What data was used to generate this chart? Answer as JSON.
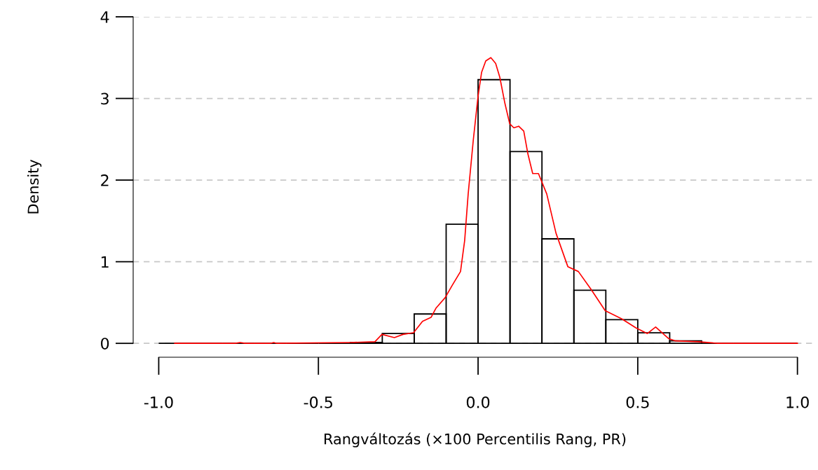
{
  "chart_data": {
    "type": "histogram",
    "xlabel": "Rangváltozás (×100 Percentilis Rang, PR)",
    "ylabel": "Density",
    "xlim": [
      -1.08,
      1.06
    ],
    "ylim": [
      -0.17,
      4
    ],
    "xticks": [
      {
        "value": -1.0,
        "label": "-1.0"
      },
      {
        "value": -0.5,
        "label": "-0.5"
      },
      {
        "value": 0.0,
        "label": "0.0"
      },
      {
        "value": 0.5,
        "label": "0.5"
      },
      {
        "value": 1.0,
        "label": "1.0"
      }
    ],
    "yticks": [
      0,
      1,
      2,
      3,
      4
    ],
    "grid": "y",
    "series": [
      {
        "bins": [
          -1.0,
          -0.9,
          -0.8,
          -0.7,
          -0.6,
          -0.5,
          -0.4,
          -0.3,
          -0.2,
          -0.1,
          0.0,
          0.1,
          0.2,
          0.3,
          0.4,
          0.5,
          0.6,
          0.7,
          0.8,
          0.9,
          1.0
        ],
        "values": [
          0,
          0,
          0,
          0,
          0,
          0,
          0.01,
          0.12,
          0.36,
          1.46,
          3.23,
          2.35,
          1.28,
          0.65,
          0.29,
          0.13,
          0.03,
          0,
          0,
          0
        ]
      },
      {
        "type": "line",
        "color": "#ff0000",
        "x": [
          -0.95,
          -0.76,
          -0.745,
          -0.73,
          -0.65,
          -0.64,
          -0.63,
          -0.4,
          -0.323,
          -0.301,
          -0.262,
          -0.235,
          -0.202,
          -0.174,
          -0.147,
          -0.132,
          -0.103,
          -0.081,
          -0.055,
          -0.042,
          -0.031,
          -0.015,
          0.0,
          0.011,
          0.024,
          0.04,
          0.055,
          0.068,
          0.084,
          0.099,
          0.112,
          0.127,
          0.143,
          0.156,
          0.171,
          0.189,
          0.215,
          0.244,
          0.281,
          0.314,
          0.354,
          0.398,
          0.45,
          0.494,
          0.53,
          0.556,
          0.596,
          0.618,
          0.69,
          0.75,
          1.0
        ],
        "values": [
          0,
          0,
          0.01,
          0,
          0,
          0.01,
          0,
          0.01,
          0.02,
          0.11,
          0.07,
          0.11,
          0.13,
          0.27,
          0.32,
          0.43,
          0.56,
          0.71,
          0.88,
          1.26,
          1.83,
          2.49,
          3.03,
          3.32,
          3.46,
          3.5,
          3.43,
          3.26,
          2.94,
          2.69,
          2.64,
          2.66,
          2.6,
          2.32,
          2.08,
          2.08,
          1.83,
          1.35,
          0.94,
          0.88,
          0.66,
          0.4,
          0.3,
          0.19,
          0.12,
          0.2,
          0.06,
          0.03,
          0.02,
          0,
          0
        ]
      }
    ]
  }
}
